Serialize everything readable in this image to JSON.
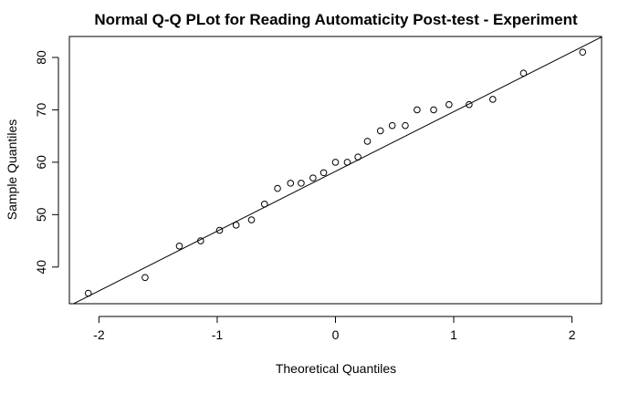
{
  "chart_data": {
    "type": "scatter",
    "title": "Normal Q-Q PLot for Reading Automaticity Post-test - Experiment",
    "xlabel": "Theoretical Quantiles",
    "ylabel": "Sample Quantiles",
    "xlim": [
      -2.25,
      2.25
    ],
    "ylim": [
      33,
      84
    ],
    "xticks": [
      "-2",
      "-1",
      "0",
      "1",
      "2"
    ],
    "yticks": [
      "40",
      "50",
      "60",
      "70",
      "80"
    ],
    "grid": false,
    "legend": "none",
    "series": [
      {
        "marker": "open-circle",
        "color": "#000000",
        "points": [
          {
            "x": -2.09,
            "y": 35
          },
          {
            "x": -1.61,
            "y": 38
          },
          {
            "x": -1.32,
            "y": 44
          },
          {
            "x": -1.14,
            "y": 45
          },
          {
            "x": -0.98,
            "y": 47
          },
          {
            "x": -0.84,
            "y": 48
          },
          {
            "x": -0.71,
            "y": 49
          },
          {
            "x": -0.6,
            "y": 52
          },
          {
            "x": -0.49,
            "y": 55
          },
          {
            "x": -0.38,
            "y": 56
          },
          {
            "x": -0.29,
            "y": 56
          },
          {
            "x": -0.19,
            "y": 57
          },
          {
            "x": -0.1,
            "y": 58
          },
          {
            "x": 0.0,
            "y": 60
          },
          {
            "x": 0.1,
            "y": 60
          },
          {
            "x": 0.19,
            "y": 61
          },
          {
            "x": 0.27,
            "y": 64
          },
          {
            "x": 0.38,
            "y": 66
          },
          {
            "x": 0.48,
            "y": 67
          },
          {
            "x": 0.59,
            "y": 67
          },
          {
            "x": 0.69,
            "y": 70
          },
          {
            "x": 0.83,
            "y": 70
          },
          {
            "x": 0.96,
            "y": 71
          },
          {
            "x": 1.13,
            "y": 71
          },
          {
            "x": 1.33,
            "y": 72
          },
          {
            "x": 1.59,
            "y": 77
          },
          {
            "x": 2.09,
            "y": 81
          }
        ]
      }
    ],
    "reference_line": {
      "color": "#000000",
      "x": [
        -2.25,
        2.25
      ],
      "y": [
        32.6,
        83.9
      ]
    }
  }
}
